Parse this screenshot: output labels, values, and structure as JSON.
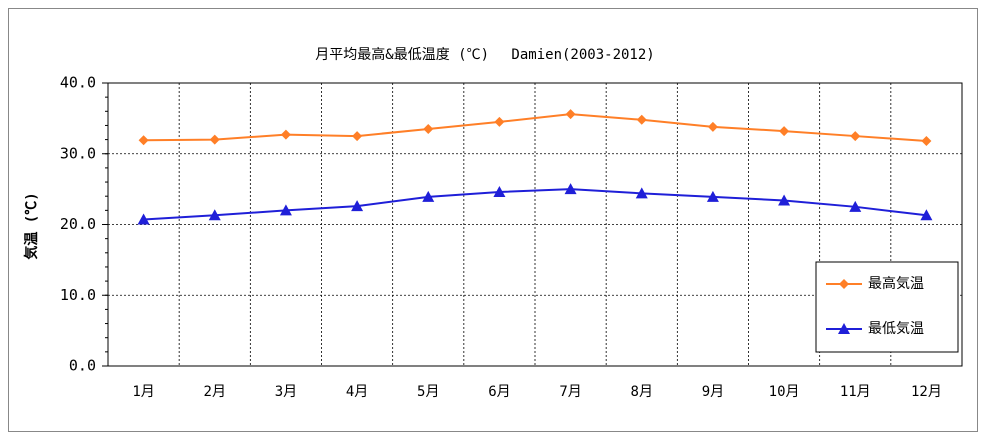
{
  "chart_data": {
    "type": "line",
    "title": "月平均最高&最低温度 (℃)　 Damien(2003-2012)",
    "y_label": "気温 (℃)",
    "categories": [
      "1月",
      "2月",
      "3月",
      "4月",
      "5月",
      "6月",
      "7月",
      "8月",
      "9月",
      "10月",
      "11月",
      "12月"
    ],
    "series": [
      {
        "name": "最高気温",
        "color": "#ff7f27",
        "marker": "diamond",
        "values": [
          31.9,
          32.0,
          32.7,
          32.5,
          33.5,
          34.5,
          35.6,
          34.8,
          33.8,
          33.2,
          32.5,
          31.8
        ]
      },
      {
        "name": "最低気温",
        "color": "#1f1fd8",
        "marker": "triangle",
        "values": [
          20.7,
          21.3,
          22.0,
          22.6,
          23.9,
          24.6,
          25.0,
          24.4,
          23.9,
          23.4,
          22.5,
          21.3
        ]
      }
    ],
    "ylim": [
      0,
      40
    ],
    "yticks": [
      {
        "value": 0,
        "label": "0.0"
      },
      {
        "value": 10,
        "label": "10.0"
      },
      {
        "value": 20,
        "label": "20.0"
      },
      {
        "value": 30,
        "label": "30.0"
      },
      {
        "value": 40,
        "label": "40.0"
      }
    ],
    "grid": true,
    "legend": "lower right"
  }
}
